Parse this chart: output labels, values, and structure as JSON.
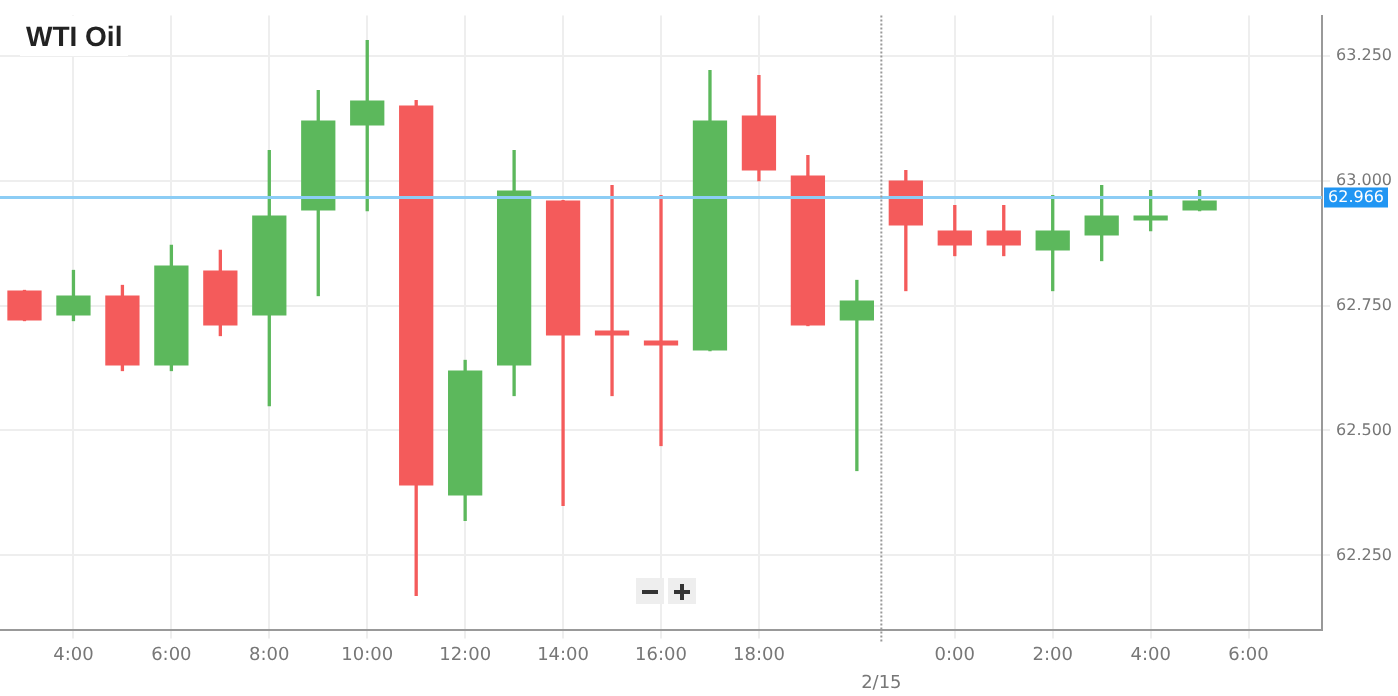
{
  "chart_data": {
    "type": "candlestick",
    "title": "WTI Oil",
    "categories": [
      null,
      "4:00",
      null,
      "6:00",
      null,
      "8:00",
      null,
      "10:00",
      null,
      "12:00",
      null,
      "14:00",
      null,
      "16:00",
      null,
      "18:00",
      null,
      null,
      null,
      "0:00",
      null,
      "2:00",
      null,
      "4:00",
      null,
      "6:00",
      null
    ],
    "ohlc": [
      [
        62.78,
        62.78,
        62.72,
        62.72
      ],
      [
        62.73,
        62.82,
        62.72,
        62.77
      ],
      [
        62.77,
        62.79,
        62.62,
        62.63
      ],
      [
        62.63,
        62.87,
        62.62,
        62.83
      ],
      [
        62.82,
        62.86,
        62.69,
        62.71
      ],
      [
        62.73,
        63.06,
        62.55,
        62.93
      ],
      [
        62.94,
        63.18,
        62.77,
        63.12
      ],
      [
        63.11,
        63.28,
        62.94,
        63.16
      ],
      [
        63.15,
        63.16,
        62.17,
        62.39
      ],
      [
        62.37,
        62.64,
        62.32,
        62.62
      ],
      [
        62.63,
        63.06,
        62.57,
        62.98
      ],
      [
        62.96,
        62.96,
        62.35,
        62.69
      ],
      [
        62.7,
        62.99,
        62.57,
        62.69
      ],
      [
        62.68,
        62.97,
        62.47,
        62.67
      ],
      [
        62.66,
        63.22,
        62.66,
        63.12
      ],
      [
        63.13,
        63.21,
        63.0,
        63.02
      ],
      [
        63.01,
        63.05,
        62.71,
        62.71
      ],
      [
        62.72,
        62.8,
        62.42,
        62.76
      ],
      [
        63.0,
        63.02,
        62.78,
        62.91
      ],
      [
        62.9,
        62.95,
        62.85,
        62.87
      ],
      [
        62.9,
        62.95,
        62.85,
        62.87
      ],
      [
        62.86,
        62.97,
        62.78,
        62.9
      ],
      [
        62.89,
        62.99,
        62.84,
        62.93
      ],
      [
        62.92,
        62.98,
        62.9,
        62.93
      ],
      [
        62.94,
        62.98,
        62.94,
        62.96
      ],
      null,
      null
    ],
    "colors": [
      "#f45b5b",
      "#5cb85c",
      "#f45b5b",
      "#5cb85c",
      "#f45b5b",
      "#5cb85c",
      "#5cb85c",
      "#5cb85c",
      "#f45b5b",
      "#5cb85c",
      "#5cb85c",
      "#f45b5b",
      "#f45b5b",
      "#f45b5b",
      "#5cb85c",
      "#f45b5b",
      "#f45b5b",
      "#5cb85c",
      "#f45b5b",
      "#f45b5b",
      "#f45b5b",
      "#5cb85c",
      "#5cb85c",
      "#5cb85c",
      "#5cb85c",
      null,
      null
    ],
    "ylim": [
      62.1,
      63.33
    ],
    "yticks": [
      {
        "value": 62.25,
        "label": "62.250"
      },
      {
        "value": 62.5,
        "label": "62.500"
      },
      {
        "value": 62.75,
        "label": "62.750"
      },
      {
        "value": 63.0,
        "label": "63.000"
      },
      {
        "value": 63.25,
        "label": "63.250"
      }
    ],
    "ref_lines": [
      {
        "axis": "y",
        "value": 62.966,
        "label": "62.966",
        "color": "#8ccdf5"
      }
    ],
    "annotations": [
      "2/15"
    ],
    "grid": true,
    "legend": false
  }
}
